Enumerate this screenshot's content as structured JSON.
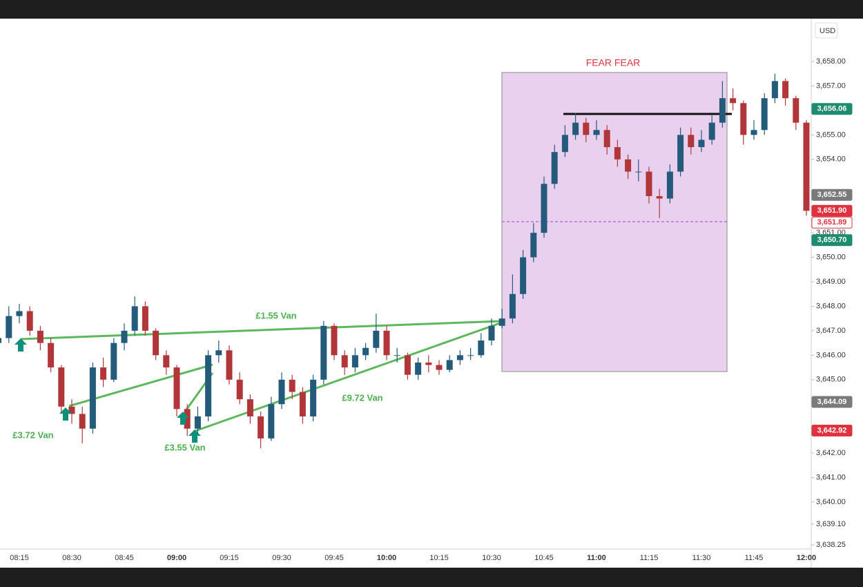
{
  "chart_data": {
    "type": "candlestick",
    "currency": "USD",
    "zone_label": "FEAR FEAR",
    "trade_labels": [
      "£1.55 Van",
      "£3.72 Van",
      "£3.55 Van",
      "£9.72 Van"
    ],
    "up_color": "#245a7a",
    "down_color": "#b0363a",
    "ylim": [
      3637.32,
      3659.75
    ],
    "yticks": [
      {
        "value": 3658,
        "label": "3,658.00"
      },
      {
        "value": 3657,
        "label": "3,657.00"
      },
      {
        "value": 3655,
        "label": "3,655.00"
      },
      {
        "value": 3654,
        "label": "3,654.00"
      },
      {
        "value": 3651,
        "label": "3,651.00"
      },
      {
        "value": 3650,
        "label": "3,650.00"
      },
      {
        "value": 3649,
        "label": "3,649.00"
      },
      {
        "value": 3648,
        "label": "3,648.00"
      },
      {
        "value": 3647,
        "label": "3,647.00"
      },
      {
        "value": 3646,
        "label": "3,646.00"
      },
      {
        "value": 3645,
        "label": "3,645.00"
      },
      {
        "value": 3642,
        "label": "3,642.00"
      },
      {
        "value": 3641,
        "label": "3,641.00"
      },
      {
        "value": 3640,
        "label": "3,640.00"
      },
      {
        "value": 3639.1,
        "label": "3,639.10"
      },
      {
        "value": 3638.25,
        "label": "3,638.25"
      }
    ],
    "price_labels": [
      {
        "value": 3656.06,
        "label": "3,656.06",
        "color": "#1e8a6e"
      },
      {
        "value": 3652.55,
        "label": "3,652.55",
        "color": "#7a7a7a"
      },
      {
        "value": 3651.9,
        "label": "3,651.90",
        "color": "#e0313f"
      },
      {
        "value": 3651.89,
        "label": "3,651.89",
        "color": "#e0313f",
        "outline": true
      },
      {
        "value": 3650.7,
        "label": "3,650.70",
        "color": "#1e8a6e"
      },
      {
        "value": 3644.09,
        "label": "3,644.09",
        "color": "#7a7a7a"
      },
      {
        "value": 3642.92,
        "label": "3,642.92",
        "color": "#e0313f"
      }
    ],
    "categories": [
      null,
      null,
      "08:15",
      null,
      null,
      null,
      null,
      "08:30",
      null,
      null,
      null,
      null,
      "08:45",
      null,
      null,
      null,
      null,
      "09:00",
      null,
      null,
      null,
      null,
      "09:15",
      null,
      null,
      null,
      null,
      "09:30",
      null,
      null,
      null,
      null,
      "09:45",
      null,
      null,
      null,
      null,
      "10:00",
      null,
      null,
      null,
      null,
      "10:15",
      null,
      null,
      null,
      null,
      "10:30",
      null,
      null,
      null,
      null,
      "10:45",
      null,
      null,
      null,
      null,
      "11:00",
      null,
      null,
      null,
      null,
      "11:15",
      null,
      null,
      null,
      null,
      "11:30",
      null,
      null,
      null,
      null,
      "11:45",
      null,
      null,
      null,
      null,
      "12:00"
    ],
    "open": [
      3646.5,
      3646.7,
      3647.6,
      3647.8,
      3647.0,
      3646.5,
      3645.5,
      3643.9,
      3643.6,
      3643.0,
      3645.5,
      3645.0,
      3646.5,
      3647.0,
      3648.0,
      3647.0,
      3646.0,
      3645.5,
      3643.8,
      3643.0,
      3643.5,
      3646.0,
      3646.2,
      3645.0,
      3644.2,
      3643.5,
      3642.6,
      3644.0,
      3645.0,
      3644.5,
      3643.5,
      3645.0,
      3647.2,
      3646.0,
      3645.5,
      3646.0,
      3646.3,
      3647.0,
      3646.0,
      3646.0,
      3645.2,
      3645.7,
      3645.6,
      3645.4,
      3645.8,
      3646.0,
      3646.0,
      3646.6,
      3647.2,
      3647.5,
      3648.5,
      3650.0,
      3651.0,
      3653.0,
      3654.3,
      3655.0,
      3655.5,
      3655.0,
      3655.2,
      3654.5,
      3654.0,
      3653.5,
      3653.5,
      3652.5,
      3652.4,
      3653.5,
      3655.0,
      3654.5,
      3654.8,
      3655.5,
      3656.5,
      3656.3,
      3655.0,
      3655.2,
      3656.5,
      3657.2,
      3656.5,
      3655.5
    ],
    "high": [
      3647.0,
      3648.0,
      3648.1,
      3648.0,
      3647.2,
      3646.7,
      3645.6,
      3644.2,
      3643.9,
      3645.7,
      3645.9,
      3646.7,
      3647.3,
      3648.4,
      3648.2,
      3647.1,
      3646.2,
      3645.6,
      3644.0,
      3643.9,
      3646.2,
      3646.6,
      3646.4,
      3645.3,
      3644.4,
      3643.7,
      3644.3,
      3645.3,
      3645.2,
      3644.7,
      3645.2,
      3647.4,
      3647.3,
      3646.2,
      3646.3,
      3646.5,
      3647.7,
      3647.2,
      3646.3,
      3646.1,
      3645.9,
      3646.0,
      3645.8,
      3646.0,
      3646.2,
      3646.3,
      3646.9,
      3647.5,
      3647.9,
      3649.3,
      3650.3,
      3651.4,
      3653.3,
      3654.6,
      3655.4,
      3655.9,
      3655.7,
      3655.6,
      3655.4,
      3654.8,
      3654.2,
      3654.0,
      3653.7,
      3652.8,
      3653.8,
      3655.3,
      3655.3,
      3655.2,
      3655.8,
      3657.2,
      3656.9,
      3656.4,
      3655.6,
      3656.7,
      3657.5,
      3657.3,
      3656.6,
      3655.6
    ],
    "low": [
      3646.2,
      3646.5,
      3647.3,
      3646.8,
      3646.2,
      3645.3,
      3643.6,
      3643.2,
      3642.4,
      3642.8,
      3644.7,
      3644.9,
      3646.2,
      3646.8,
      3646.8,
      3645.8,
      3645.2,
      3643.5,
      3642.7,
      3642.8,
      3643.3,
      3645.7,
      3644.8,
      3644.0,
      3643.2,
      3642.2,
      3642.5,
      3643.8,
      3644.2,
      3643.2,
      3643.3,
      3644.8,
      3645.8,
      3645.2,
      3645.3,
      3645.8,
      3646.1,
      3645.8,
      3645.7,
      3645.0,
      3645.0,
      3645.3,
      3645.2,
      3645.3,
      3645.6,
      3645.8,
      3645.9,
      3646.4,
      3647.1,
      3647.3,
      3648.3,
      3649.8,
      3650.8,
      3652.8,
      3654.1,
      3654.8,
      3654.7,
      3654.8,
      3654.2,
      3653.7,
      3653.2,
      3653.1,
      3652.2,
      3651.6,
      3652.2,
      3653.3,
      3654.2,
      3654.3,
      3654.6,
      3655.3,
      3656.0,
      3654.6,
      3654.8,
      3655.0,
      3656.3,
      3656.2,
      3655.2,
      3651.7
    ],
    "close": [
      3646.7,
      3647.6,
      3647.8,
      3647.0,
      3646.5,
      3645.5,
      3643.9,
      3643.6,
      3643.0,
      3645.5,
      3645.0,
      3646.5,
      3647.0,
      3648.0,
      3647.0,
      3646.0,
      3645.5,
      3643.8,
      3643.0,
      3643.5,
      3646.0,
      3646.2,
      3645.0,
      3644.2,
      3643.5,
      3642.6,
      3644.0,
      3645.0,
      3644.5,
      3643.5,
      3645.0,
      3647.2,
      3646.0,
      3645.5,
      3646.0,
      3646.3,
      3647.0,
      3646.0,
      3646.0,
      3645.2,
      3645.7,
      3645.6,
      3645.4,
      3645.8,
      3646.0,
      3646.0,
      3646.6,
      3647.2,
      3647.5,
      3648.5,
      3650.0,
      3651.0,
      3653.0,
      3654.3,
      3655.0,
      3655.5,
      3655.0,
      3655.2,
      3654.5,
      3654.0,
      3653.5,
      3653.5,
      3652.5,
      3652.4,
      3653.5,
      3655.0,
      3654.5,
      3654.8,
      3655.5,
      3656.5,
      3656.3,
      3655.0,
      3655.2,
      3656.5,
      3657.2,
      3656.5,
      3655.5,
      3651.9
    ]
  }
}
